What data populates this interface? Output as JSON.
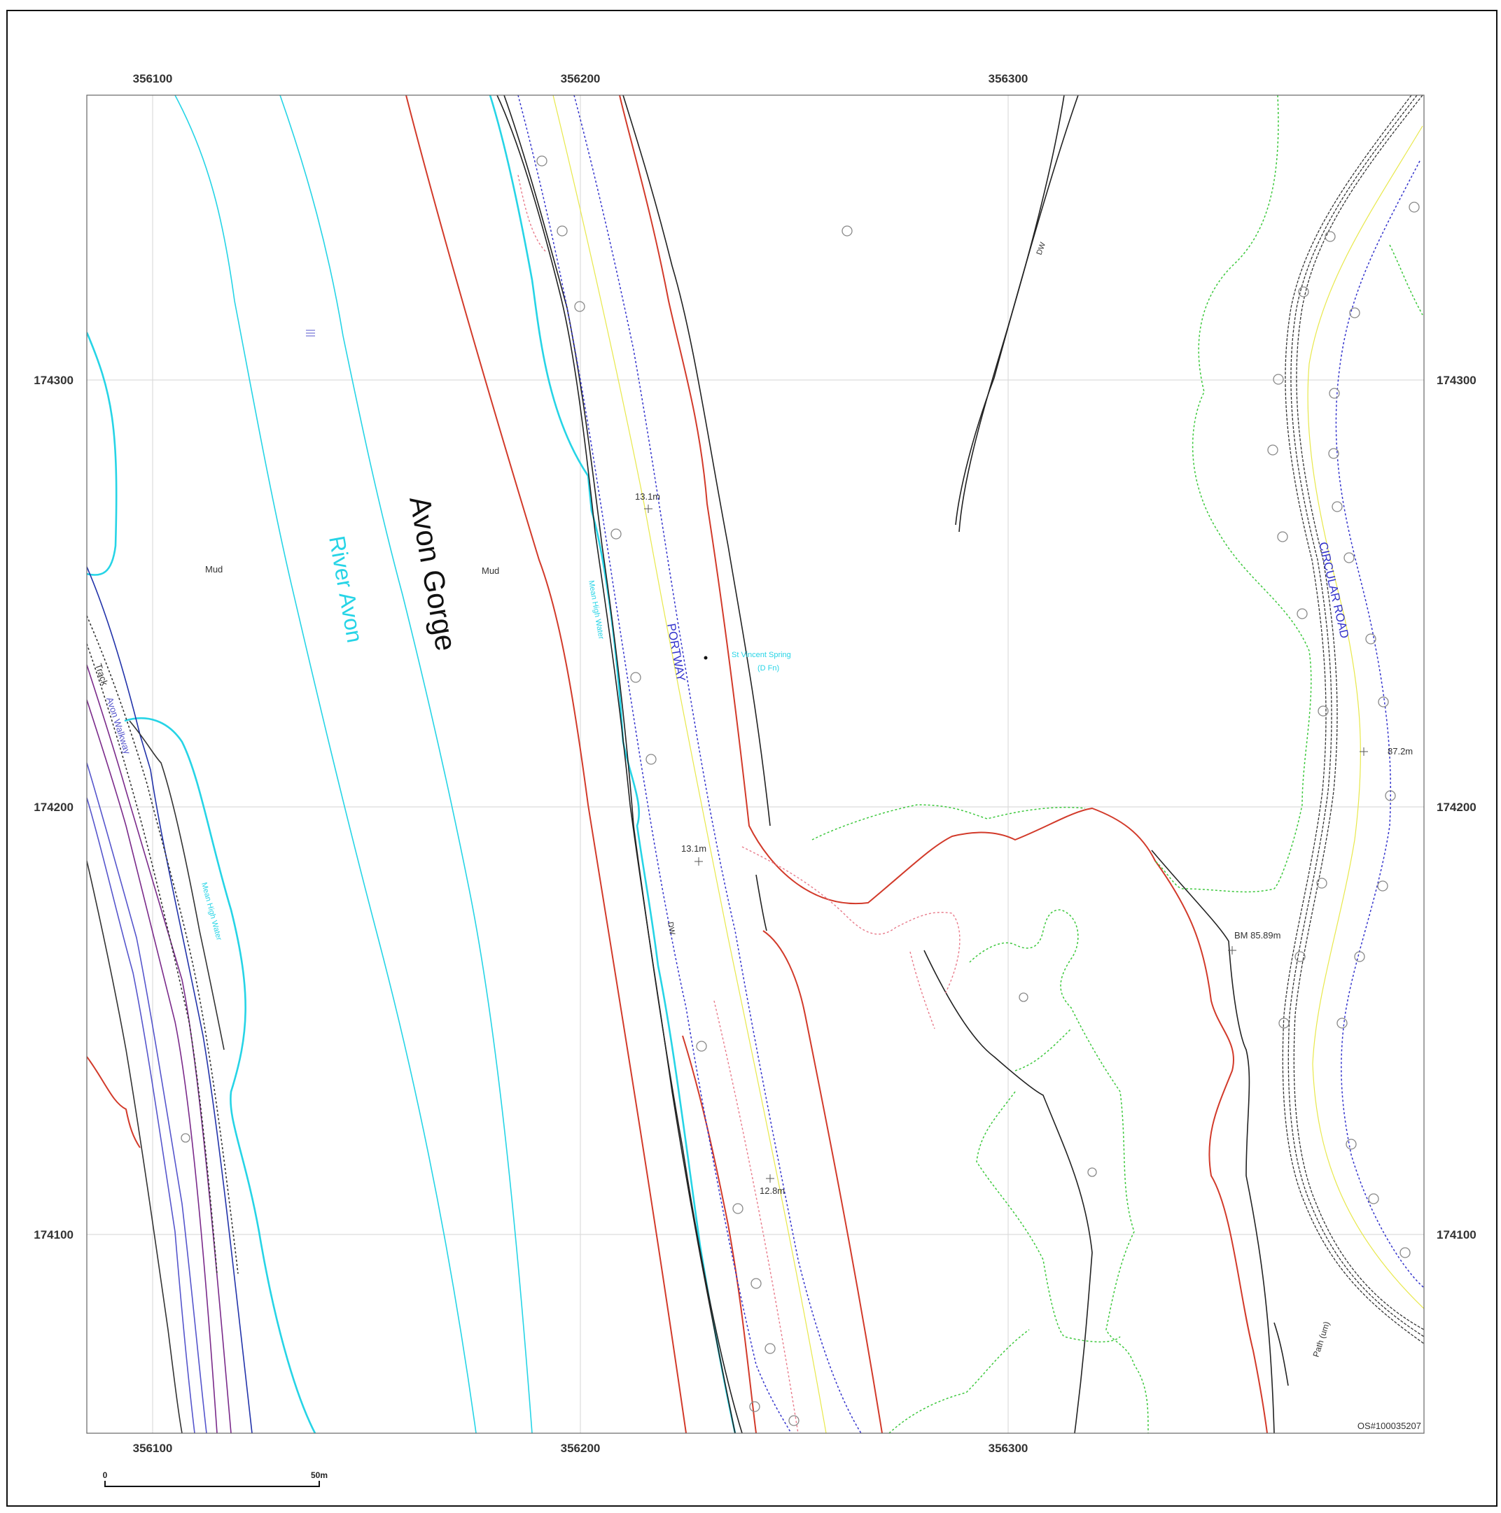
{
  "map": {
    "grid": {
      "eastings": [
        "356100",
        "356200",
        "356300"
      ],
      "northings": [
        "174300",
        "174200",
        "174100"
      ]
    },
    "labels": {
      "gorge": "Avon Gorge",
      "river": "River Avon",
      "mud_left": "Mud",
      "mud_right": "Mud",
      "mhw_upper": "Mean High Water",
      "mhw_lower": "Mean High Water",
      "portway": "PORTWAY",
      "circular_road": "CIRCULAR ROAD",
      "spring": "St Vincent Spring",
      "spring_sub": "(D Fn)",
      "track": "Track",
      "walkway": "Avon Walkway",
      "dw_top": "DW",
      "dw_mid": "DW",
      "path": "Path (um)"
    },
    "spot_heights": {
      "h1": "13.1m",
      "h2": "13.1m",
      "h3": "12.8m",
      "h4": "87.2m",
      "bm": "BM 85.89m"
    },
    "copyright": "OS#100035207",
    "scale_bar": {
      "start": "0",
      "end": "50m"
    },
    "colors": {
      "water": "#26d4e6",
      "road": "#3333cc",
      "boundary": "#d23a2a",
      "vegetation": "#3cc83c",
      "building": "#222222",
      "grid": "#d8d8d8"
    }
  }
}
